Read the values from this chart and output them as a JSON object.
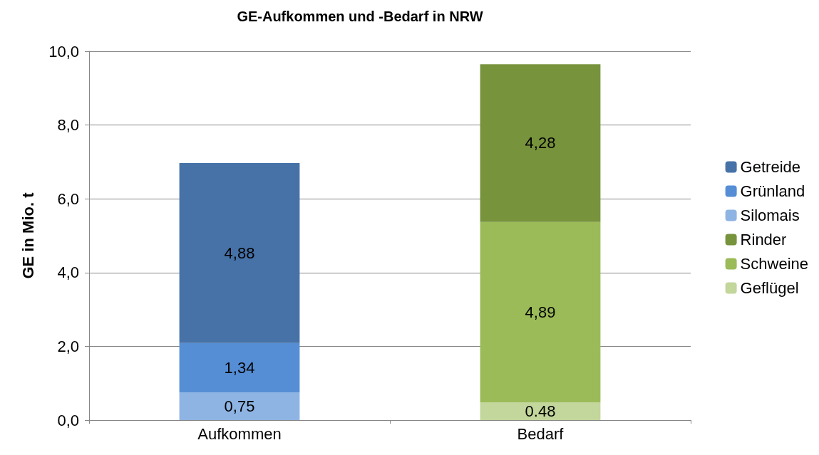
{
  "chart_data": {
    "type": "bar",
    "title": "GE-Aufkommen und -Bedarf in NRW",
    "ylabel": "GE in Mio. t",
    "categories": [
      "Aufkommen",
      "Bedarf"
    ],
    "stacked": true,
    "series": [
      {
        "name": "Geflügel",
        "color": "#c3d69b",
        "values": [
          null,
          0.48
        ],
        "value_labels": [
          null,
          "0.48"
        ]
      },
      {
        "name": "Schweine",
        "color": "#9bbb59",
        "values": [
          null,
          4.89
        ],
        "value_labels": [
          null,
          "4,89"
        ]
      },
      {
        "name": "Rinder",
        "color": "#77933c",
        "values": [
          null,
          4.28
        ],
        "value_labels": [
          null,
          "4,28"
        ]
      },
      {
        "name": "Silomais",
        "color": "#8eb4e3",
        "values": [
          0.75,
          null
        ],
        "value_labels": [
          "0,75",
          null
        ]
      },
      {
        "name": "Grünland",
        "color": "#558ed5",
        "values": [
          1.34,
          null
        ],
        "value_labels": [
          "1,34",
          null
        ]
      },
      {
        "name": "Getreide",
        "color": "#4672a8",
        "values": [
          4.88,
          null
        ],
        "value_labels": [
          "4,88",
          null
        ]
      }
    ],
    "ylim": [
      0,
      10
    ],
    "yticks": [
      {
        "value": 0,
        "label": "0,0"
      },
      {
        "value": 2,
        "label": "2,0"
      },
      {
        "value": 4,
        "label": "4,0"
      },
      {
        "value": 6,
        "label": "6,0"
      },
      {
        "value": 8,
        "label": "8,0"
      },
      {
        "value": 10,
        "label": "10,0"
      }
    ],
    "grid": "y",
    "legend": "right"
  }
}
